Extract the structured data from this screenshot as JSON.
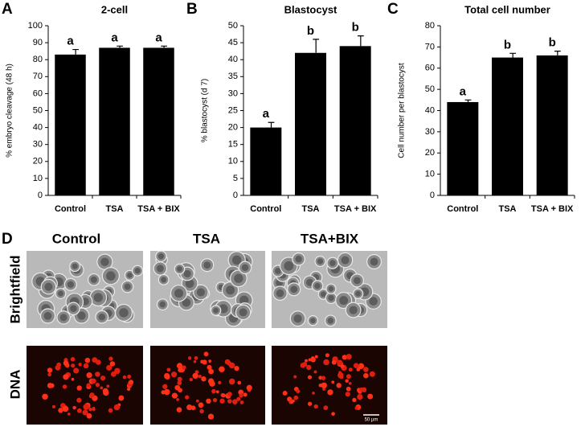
{
  "chart_data": [
    {
      "type": "bar",
      "panel": "A",
      "title": "2-cell",
      "y_label": "% embryo cleavage (48 h)",
      "categories": [
        "Control",
        "TSA",
        "TSA + BIX"
      ],
      "values": [
        83,
        87,
        87
      ],
      "errors": [
        3,
        1,
        1
      ],
      "annotations": [
        "a",
        "a",
        "a"
      ],
      "color": "#000000",
      "ylim": [
        0,
        100
      ],
      "yticks": [
        0,
        10,
        20,
        30,
        40,
        50,
        60,
        70,
        80,
        90,
        100
      ]
    },
    {
      "type": "bar",
      "panel": "B",
      "title": "Blastocyst",
      "y_label": "% blastocyst (d 7)",
      "categories": [
        "Control",
        "TSA",
        "TSA + BIX"
      ],
      "values": [
        20,
        42,
        44
      ],
      "errors": [
        1.5,
        4,
        3
      ],
      "annotations": [
        "a",
        "b",
        "b"
      ],
      "color": "#000000",
      "ylim": [
        0,
        50
      ],
      "yticks": [
        0,
        5,
        10,
        15,
        20,
        25,
        30,
        35,
        40,
        45,
        50
      ]
    },
    {
      "type": "bar",
      "panel": "C",
      "title": "Total cell number",
      "y_label": "Cell number per blastocyst",
      "categories": [
        "Control",
        "TSA",
        "TSA + BIX"
      ],
      "values": [
        44,
        65,
        66
      ],
      "errors": [
        1,
        2,
        2
      ],
      "annotations": [
        "a",
        "b",
        "b"
      ],
      "color": "#000000",
      "ylim": [
        0,
        80
      ],
      "yticks": [
        0,
        10,
        20,
        30,
        40,
        50,
        60,
        70,
        80
      ]
    }
  ],
  "panel_d": {
    "label": "D",
    "columns": [
      "Control",
      "TSA",
      "TSA+BIX"
    ],
    "rows": [
      "Brightfield",
      "DNA"
    ],
    "scale_bar": "50 µm"
  }
}
